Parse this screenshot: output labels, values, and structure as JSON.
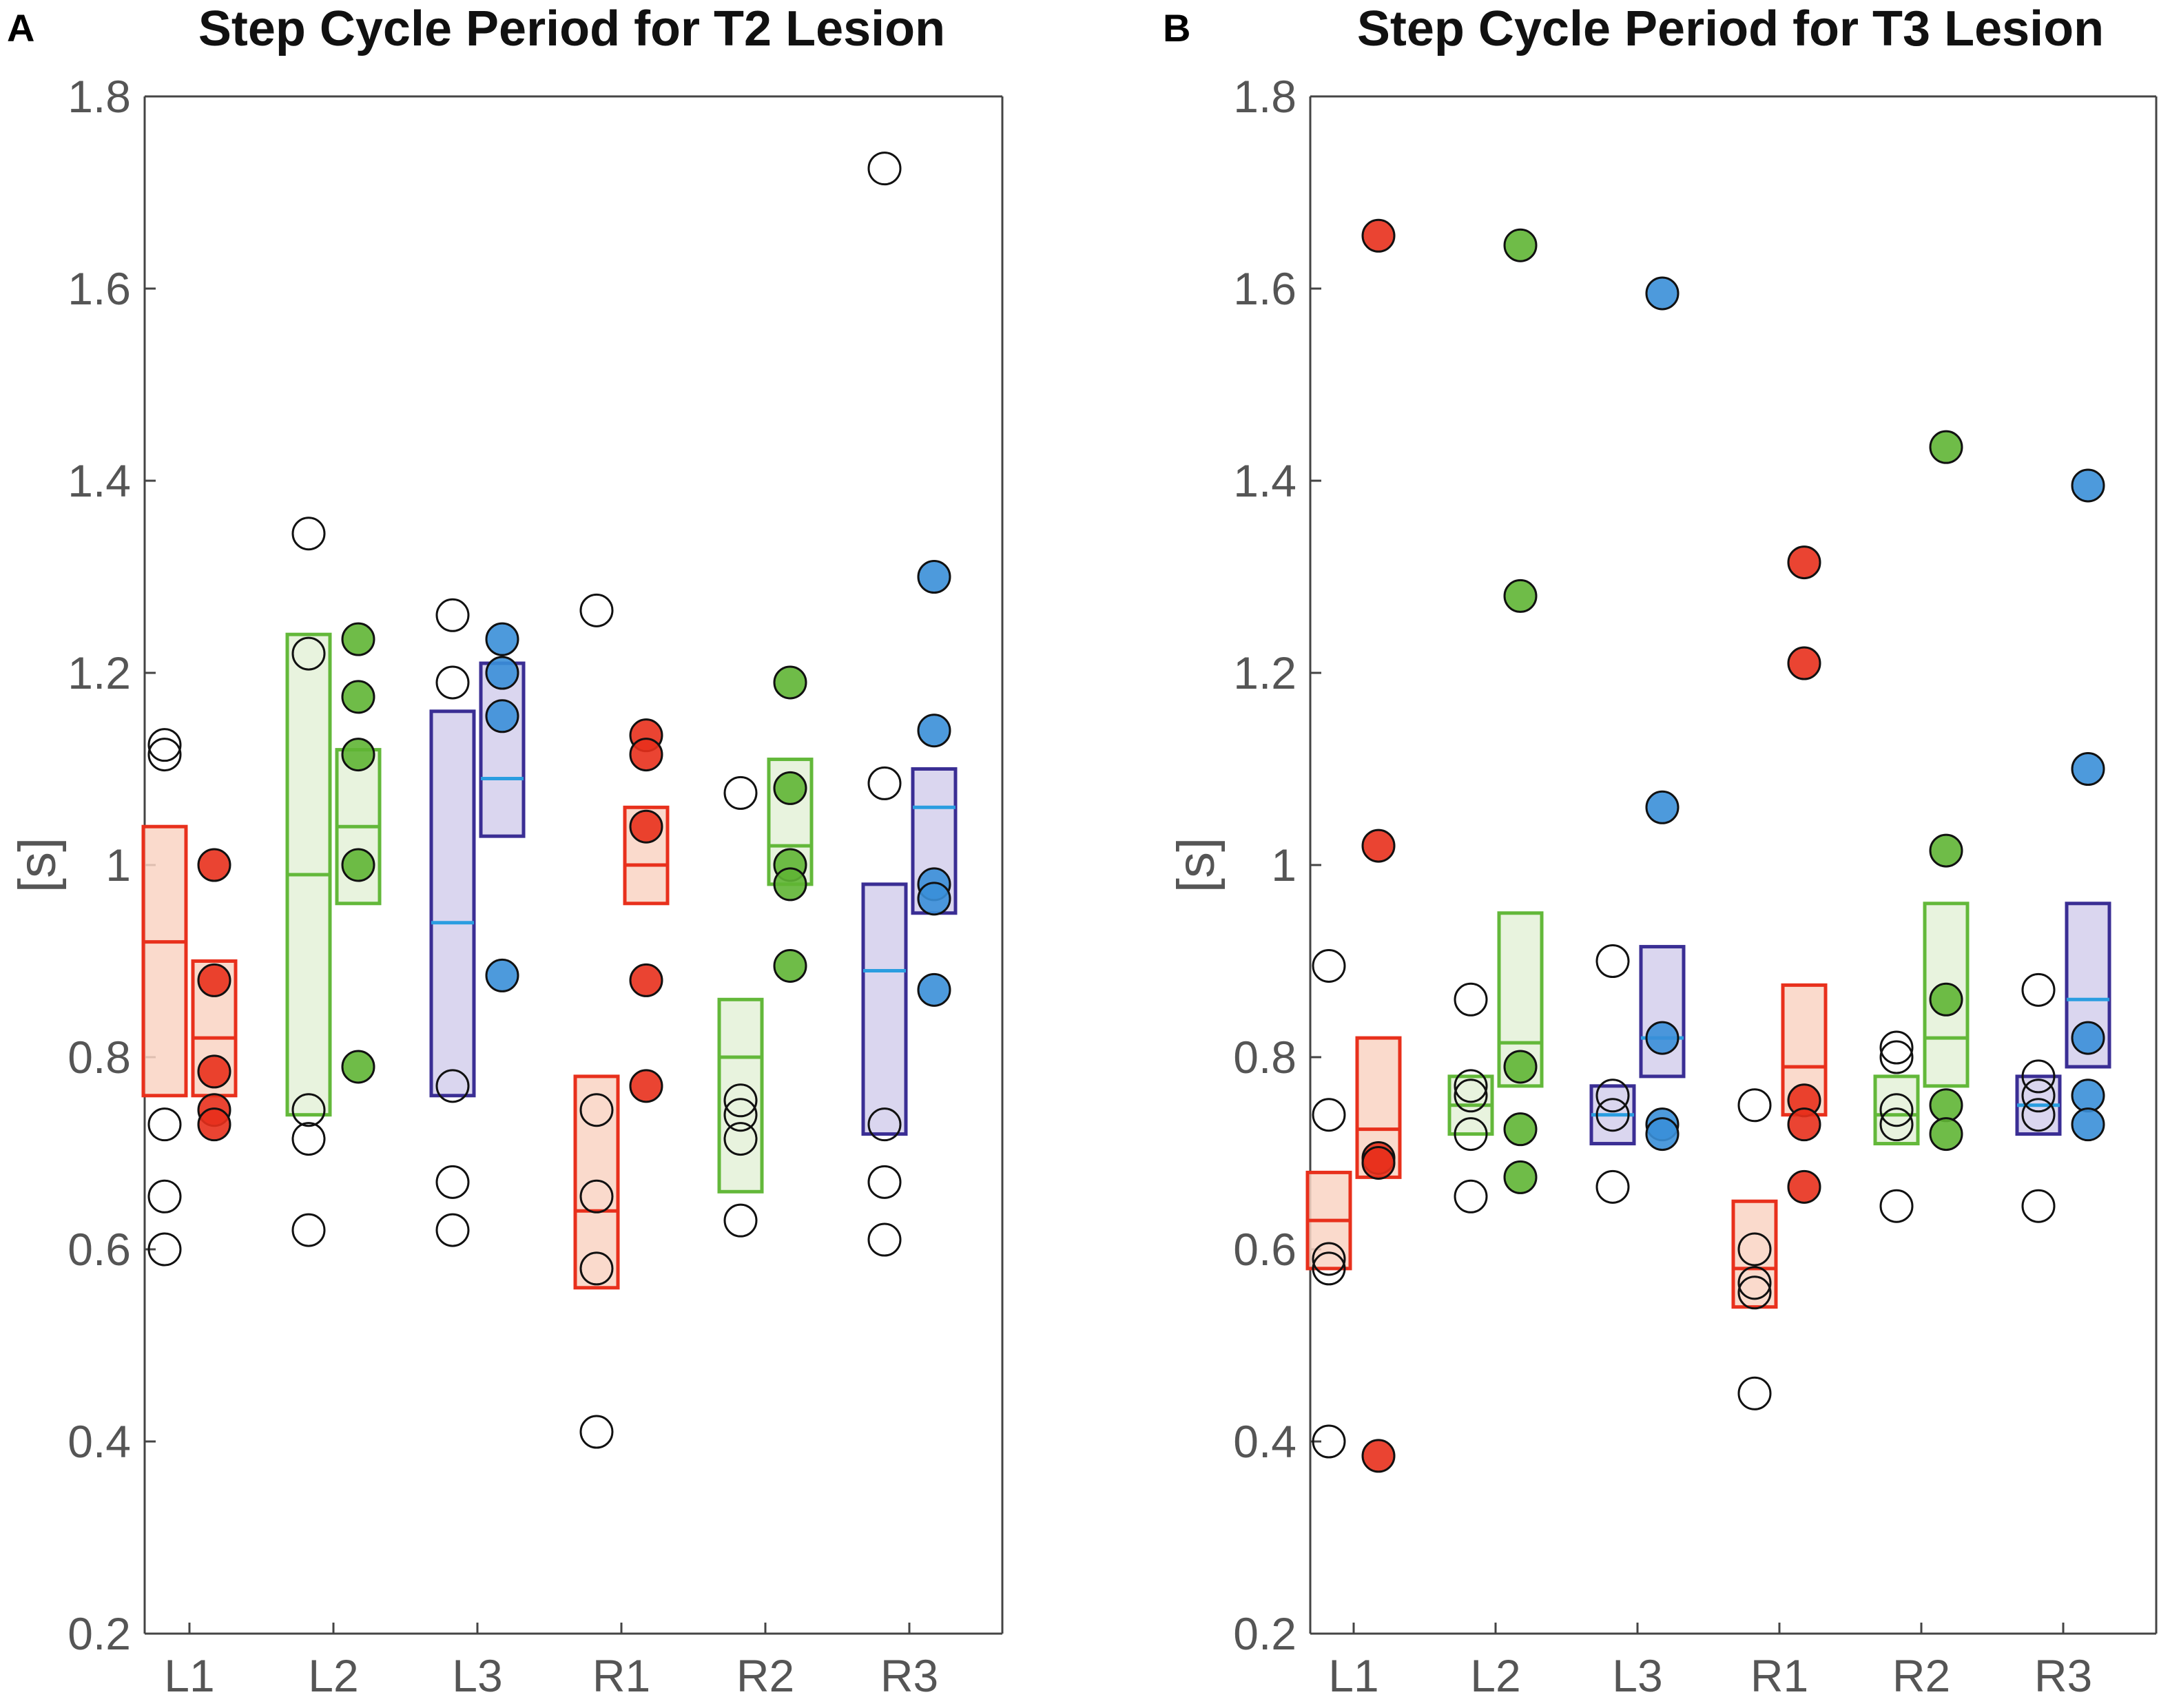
{
  "colors": {
    "L1": "#e8301c",
    "L2": "#63b83a",
    "L3": "#3a2e94",
    "R1": "#e8301c",
    "R2": "#63b83a",
    "R3": "#3a2e94",
    "fillRed": "#f9d3c3",
    "fillGreen": "#e4f1d8",
    "fillBlue": "#d3cfec",
    "dotRed": "#e8301c",
    "dotGreen": "#5fb534",
    "dotBlue": "#3a8fd8",
    "medianBlue": "#2a9de0"
  },
  "chart_data": [
    {
      "type": "box-scatter",
      "panel_label": "A",
      "title": "Step Cycle Period for T2 Lesion",
      "xlabel": "",
      "ylabel": "[s]",
      "ylim": [
        0.2,
        1.8
      ],
      "yticks": [
        "0.2",
        "0.4",
        "0.6",
        "0.8",
        "1",
        "1.2",
        "1.4",
        "1.6",
        "1.8"
      ],
      "categories": [
        "L1",
        "L2",
        "L3",
        "R1",
        "R2",
        "R3"
      ],
      "groups": [
        {
          "leg": "L1",
          "pre": {
            "box": [
              0.76,
              0.92,
              1.04
            ],
            "points": [
              1.125,
              1.115,
              0.73,
              0.655,
              0.6
            ]
          },
          "post": {
            "box": [
              0.76,
              0.82,
              0.9
            ],
            "points": [
              1.0,
              0.88,
              0.785,
              0.745,
              0.73
            ]
          }
        },
        {
          "leg": "L2",
          "pre": {
            "box": [
              0.74,
              0.99,
              1.24
            ],
            "points": [
              1.345,
              1.22,
              0.745,
              0.715,
              0.62
            ]
          },
          "post": {
            "box": [
              0.96,
              1.04,
              1.12
            ],
            "points": [
              1.235,
              1.175,
              1.115,
              1.0,
              0.79
            ]
          }
        },
        {
          "leg": "L3",
          "pre": {
            "box": [
              0.76,
              0.94,
              1.16
            ],
            "points": [
              1.26,
              1.19,
              0.77,
              0.67,
              0.62
            ]
          },
          "post": {
            "box": [
              1.03,
              1.09,
              1.21
            ],
            "points": [
              1.235,
              1.2,
              1.155,
              0.885
            ]
          }
        },
        {
          "leg": "R1",
          "pre": {
            "box": [
              0.56,
              0.64,
              0.78
            ],
            "points": [
              1.265,
              0.745,
              0.655,
              0.58,
              0.41
            ]
          },
          "post": {
            "box": [
              0.96,
              1.0,
              1.06
            ],
            "points": [
              1.135,
              1.115,
              1.04,
              0.88,
              0.77
            ]
          }
        },
        {
          "leg": "R2",
          "pre": {
            "box": [
              0.66,
              0.8,
              0.86
            ],
            "points": [
              1.075,
              0.755,
              0.74,
              0.715,
              0.63
            ]
          },
          "post": {
            "box": [
              0.98,
              1.02,
              1.11
            ],
            "points": [
              1.19,
              1.08,
              1.0,
              0.98,
              0.895
            ]
          }
        },
        {
          "leg": "R3",
          "pre": {
            "box": [
              0.72,
              0.89,
              0.98
            ],
            "points": [
              1.725,
              1.085,
              0.73,
              0.67,
              0.61
            ]
          },
          "post": {
            "box": [
              0.95,
              1.06,
              1.1
            ],
            "points": [
              1.3,
              1.14,
              0.98,
              0.965,
              0.87
            ]
          }
        }
      ]
    },
    {
      "type": "box-scatter",
      "panel_label": "B",
      "title": "Step Cycle Period for T3 Lesion",
      "xlabel": "",
      "ylabel": "[s]",
      "ylim": [
        0.2,
        1.8
      ],
      "yticks": [
        "0.2",
        "0.4",
        "0.6",
        "0.8",
        "1",
        "1.2",
        "1.4",
        "1.6",
        "1.8"
      ],
      "categories": [
        "L1",
        "L2",
        "L3",
        "R1",
        "R2",
        "R3"
      ],
      "groups": [
        {
          "leg": "L1",
          "pre": {
            "box": [
              0.58,
              0.63,
              0.68
            ],
            "points": [
              0.895,
              0.74,
              0.59,
              0.58,
              0.4
            ]
          },
          "post": {
            "box": [
              0.675,
              0.725,
              0.82
            ],
            "points": [
              1.655,
              1.02,
              0.695,
              0.69,
              0.385
            ]
          }
        },
        {
          "leg": "L2",
          "pre": {
            "box": [
              0.72,
              0.75,
              0.78
            ],
            "points": [
              0.86,
              0.77,
              0.76,
              0.72,
              0.655
            ]
          },
          "post": {
            "box": [
              0.77,
              0.815,
              0.95
            ],
            "points": [
              1.645,
              1.28,
              0.79,
              0.725,
              0.675
            ]
          }
        },
        {
          "leg": "L3",
          "pre": {
            "box": [
              0.71,
              0.74,
              0.77
            ],
            "points": [
              0.9,
              0.76,
              0.74,
              0.665
            ]
          },
          "post": {
            "box": [
              0.78,
              0.82,
              0.915
            ],
            "points": [
              1.595,
              1.06,
              0.82,
              0.73,
              0.72
            ]
          }
        },
        {
          "leg": "R1",
          "pre": {
            "box": [
              0.54,
              0.58,
              0.65
            ],
            "points": [
              0.75,
              0.6,
              0.565,
              0.555,
              0.45
            ]
          },
          "post": {
            "box": [
              0.74,
              0.79,
              0.875
            ],
            "points": [
              1.315,
              1.21,
              0.755,
              0.73,
              0.665
            ]
          }
        },
        {
          "leg": "R2",
          "pre": {
            "box": [
              0.71,
              0.74,
              0.78
            ],
            "points": [
              0.81,
              0.8,
              0.745,
              0.73,
              0.645
            ]
          },
          "post": {
            "box": [
              0.77,
              0.82,
              0.96
            ],
            "points": [
              1.435,
              1.015,
              0.86,
              0.75,
              0.72
            ]
          }
        },
        {
          "leg": "R3",
          "pre": {
            "box": [
              0.72,
              0.75,
              0.78
            ],
            "points": [
              0.87,
              0.78,
              0.76,
              0.74,
              0.645
            ]
          },
          "post": {
            "box": [
              0.79,
              0.86,
              0.96
            ],
            "points": [
              1.395,
              1.1,
              0.82,
              0.76,
              0.73
            ]
          }
        }
      ]
    }
  ]
}
